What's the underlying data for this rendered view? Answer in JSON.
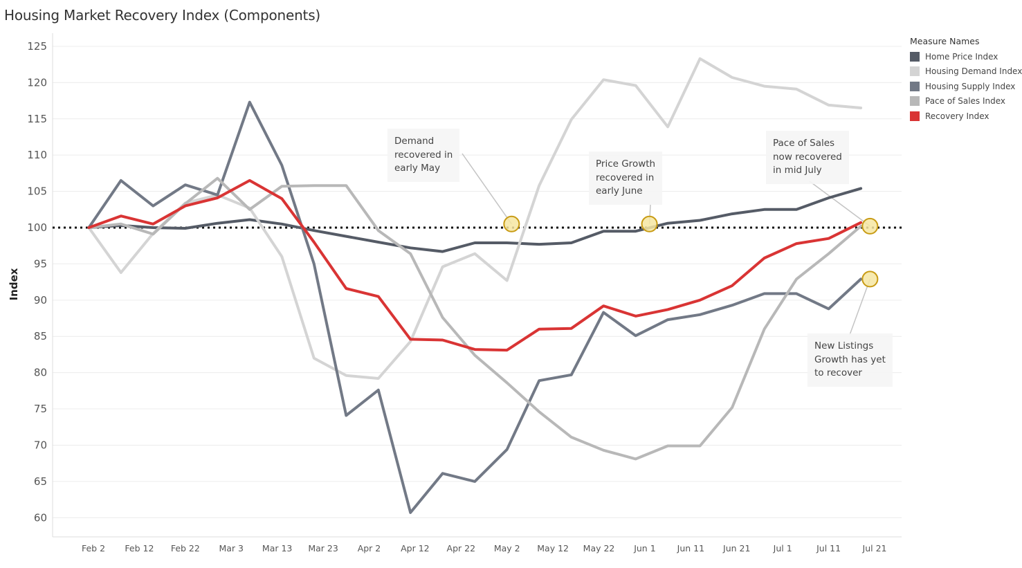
{
  "title": "Housing Market Recovery Index (Components)",
  "colors": {
    "Home Price Index": "#555b66",
    "Housing Demand Index": "#d4d4d4",
    "Housing Supply Index": "#727986",
    "Pace of Sales Index": "#b8b8b8",
    "Recovery Index": "#d93434",
    "reference_line": "#111111",
    "marker_fill": "#f6e6a2",
    "marker_stroke": "#c89b14",
    "gridline": "#ececec"
  },
  "legend": {
    "title": "Measure Names",
    "items": [
      "Home Price Index",
      "Housing Demand Index",
      "Housing Supply Index",
      "Pace of Sales Index",
      "Recovery Index"
    ]
  },
  "annotations": [
    {
      "text": "Demand\nrecovered in\nearly May",
      "x": "May 3",
      "y": 100.5
    },
    {
      "text": "Price Growth\nrecovered in\nearly June",
      "x": "Jun 2",
      "y": 100.5
    },
    {
      "text": "Pace of Sales\nnow recovered\nin mid July",
      "x": "Jul 20",
      "y": 100.2
    },
    {
      "text": "New Listings\nGrowth has yet\nto recover",
      "x": "Jul 20",
      "y": 92.9
    }
  ],
  "chart_data": {
    "type": "line",
    "title": "Housing Market Recovery Index (Components)",
    "ylabel": "Index",
    "xlabel": "",
    "ylim": [
      58,
      127
    ],
    "y_ticks": [
      60,
      65,
      70,
      75,
      80,
      85,
      90,
      95,
      100,
      105,
      110,
      115,
      120,
      125
    ],
    "x_tick_labels": [
      "Feb 2",
      "Feb 12",
      "Feb 22",
      "Mar 3",
      "Mar 13",
      "Mar 23",
      "Apr 2",
      "Apr 12",
      "Apr 22",
      "May 2",
      "May 12",
      "May 22",
      "Jun 1",
      "Jun 11",
      "Jun 21",
      "Jul 1",
      "Jul 11",
      "Jul 21"
    ],
    "x": [
      "Feb 1",
      "Feb 8",
      "Feb 15",
      "Feb 22",
      "Feb 29",
      "Mar 7",
      "Mar 14",
      "Mar 21",
      "Mar 28",
      "Apr 4",
      "Apr 11",
      "Apr 18",
      "Apr 25",
      "May 2",
      "May 9",
      "May 16",
      "May 23",
      "May 30",
      "Jun 6",
      "Jun 13",
      "Jun 20",
      "Jun 27",
      "Jul 4",
      "Jul 11",
      "Jul 18"
    ],
    "reference_line": 100,
    "grid": true,
    "legend_position": "top-right",
    "series": [
      {
        "name": "Home Price Index",
        "values": [
          100,
          100.3,
          100,
          99.9,
          100.6,
          101.1,
          100.5,
          99.6,
          98.8,
          98,
          97.2,
          96.7,
          97.9,
          97.9,
          97.7,
          97.9,
          99.5,
          99.5,
          100.6,
          101,
          101.9,
          102.5,
          102.5,
          104.1,
          105.4
        ]
      },
      {
        "name": "Housing Demand Index",
        "values": [
          100,
          93.8,
          99.2,
          103.4,
          104.5,
          102.7,
          96,
          82,
          79.6,
          79.2,
          84.3,
          94.6,
          96.4,
          92.7,
          105.8,
          114.9,
          120.4,
          119.6,
          113.9,
          123.3,
          120.7,
          119.5,
          119.1,
          116.9,
          116.5
        ]
      },
      {
        "name": "Housing Supply Index",
        "values": [
          100,
          106.5,
          103,
          105.9,
          104.5,
          117.3,
          108.6,
          95,
          74.1,
          77.6,
          60.7,
          66.1,
          65,
          69.4,
          78.9,
          79.7,
          88.3,
          85.1,
          87.3,
          88,
          89.3,
          90.9,
          90.9,
          88.8,
          92.9
        ]
      },
      {
        "name": "Pace of Sales Index",
        "values": [
          100,
          100.5,
          99.1,
          103.3,
          106.8,
          102.5,
          105.7,
          105.8,
          105.8,
          99.6,
          96.4,
          87.6,
          82.4,
          78.6,
          74.6,
          71.1,
          69.3,
          68.1,
          69.9,
          69.9,
          75.2,
          86,
          92.9,
          96.4,
          100.2
        ]
      },
      {
        "name": "Recovery Index",
        "values": [
          100,
          101.6,
          100.5,
          103,
          104.1,
          106.5,
          104,
          98,
          91.6,
          90.5,
          84.6,
          84.5,
          83.2,
          83.1,
          86,
          86.1,
          89.2,
          87.8,
          88.7,
          90,
          92,
          95.8,
          97.8,
          98.5,
          100.7
        ]
      }
    ]
  }
}
